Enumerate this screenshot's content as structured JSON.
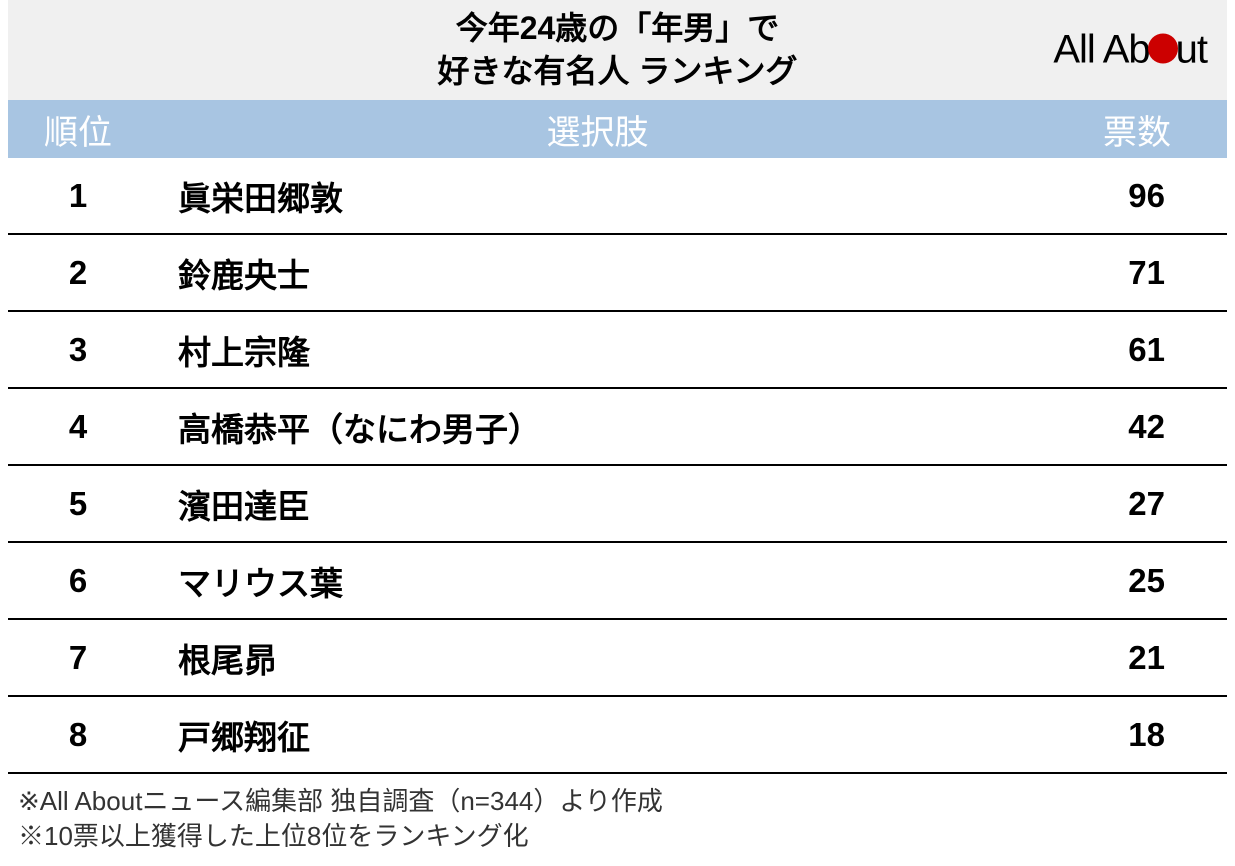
{
  "title": {
    "line1": "今年24歳の「年男」で",
    "line2": "好きな有名人 ランキング"
  },
  "logo": {
    "prefix": "All Ab",
    "suffix": "ut",
    "dot_color": "#cc0000"
  },
  "table": {
    "header_bg": "#a8c5e2",
    "header_fg": "#ffffff",
    "title_bg": "#f0f0f0",
    "row_border": "#000000",
    "columns": {
      "rank": "順位",
      "name": "選択肢",
      "votes": "票数"
    },
    "rows": [
      {
        "rank": "1",
        "name": "眞栄田郷敦",
        "votes": "96"
      },
      {
        "rank": "2",
        "name": "鈴鹿央士",
        "votes": "71"
      },
      {
        "rank": "3",
        "name": "村上宗隆",
        "votes": "61"
      },
      {
        "rank": "4",
        "name": "高橋恭平（なにわ男子）",
        "votes": "42"
      },
      {
        "rank": "5",
        "name": "濱田達臣",
        "votes": "27"
      },
      {
        "rank": "6",
        "name": "マリウス葉",
        "votes": "25"
      },
      {
        "rank": "7",
        "name": "根尾昴",
        "votes": "21"
      },
      {
        "rank": "8",
        "name": "戸郷翔征",
        "votes": "18"
      }
    ]
  },
  "footnotes": {
    "line1": "※All Aboutニュース編集部 独自調査（n=344）より作成",
    "line2": "※10票以上獲得した上位8位をランキング化"
  }
}
